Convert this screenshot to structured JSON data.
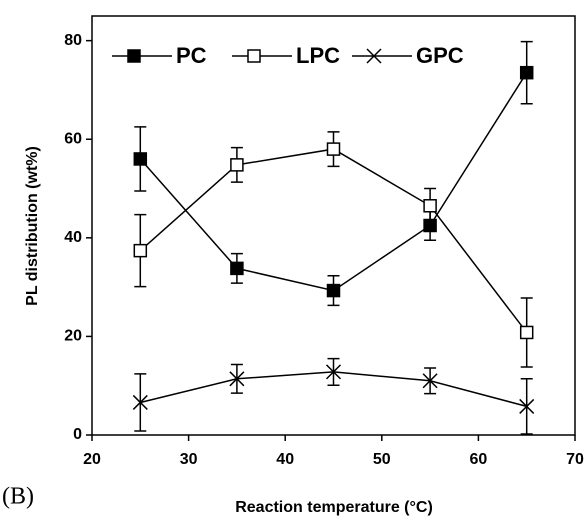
{
  "chart_data": {
    "type": "line",
    "x_label": "Reaction temperature (°C)",
    "y_label": "PL distribution (wt%)",
    "panel_label": "(B)",
    "x": [
      25,
      35,
      45,
      55,
      65
    ],
    "series": [
      {
        "name": "PC",
        "color": "#000000",
        "marker": "filled-square",
        "values": [
          56,
          33.8,
          29.3,
          42.5,
          73.5
        ],
        "errors": [
          6.5,
          3,
          3,
          3,
          6.3
        ]
      },
      {
        "name": "LPC",
        "color": "#000000",
        "marker": "open-square",
        "values": [
          37.4,
          54.8,
          58,
          46.5,
          20.8
        ],
        "errors": [
          7.3,
          3.5,
          3.5,
          3.5,
          7
        ]
      },
      {
        "name": "GPC",
        "color": "#000000",
        "marker": "cross",
        "values": [
          6.6,
          11.4,
          12.8,
          11,
          5.8
        ],
        "errors": [
          5.8,
          2.9,
          2.7,
          2.6,
          5.6
        ]
      }
    ],
    "xlim": [
      20,
      70
    ],
    "xticks": [
      20,
      30,
      40,
      50,
      60,
      70
    ],
    "ylim": [
      0,
      85
    ],
    "yticks": [
      0,
      20,
      40,
      60,
      80
    ],
    "grid": false,
    "legend": "top"
  }
}
